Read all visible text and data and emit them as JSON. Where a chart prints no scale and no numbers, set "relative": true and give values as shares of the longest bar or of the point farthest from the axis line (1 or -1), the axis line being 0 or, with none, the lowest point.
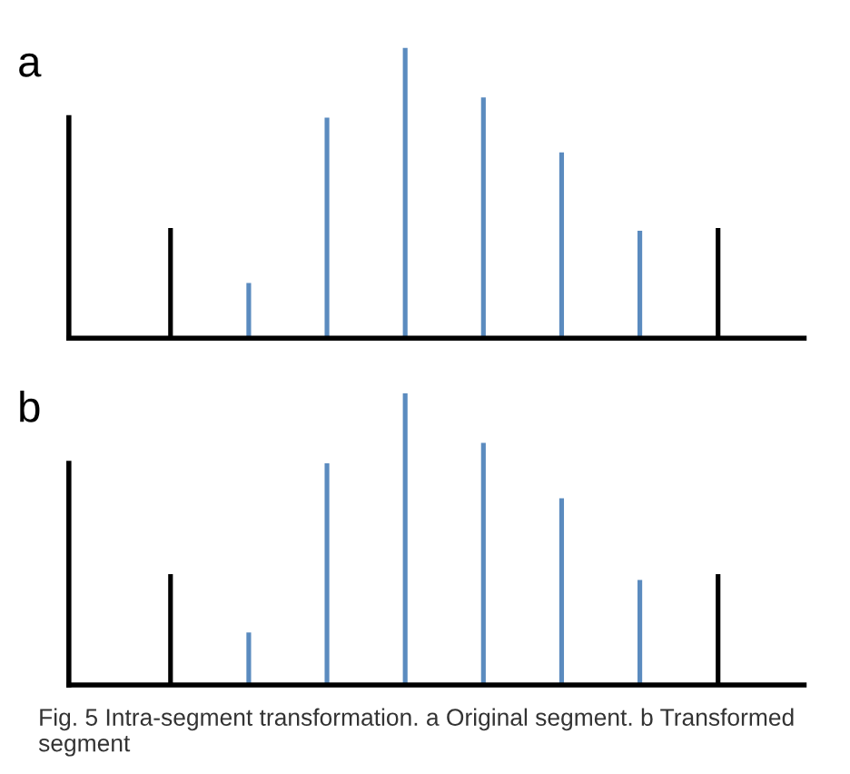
{
  "chart_data": [
    {
      "type": "bar",
      "title": "a",
      "relative": true,
      "categories": [
        null,
        null,
        null,
        null,
        null,
        null,
        null,
        null
      ],
      "values": [
        0.38,
        0.19,
        0.76,
        1.0,
        0.83,
        0.64,
        0.37,
        0.38
      ],
      "colors": [
        "#000000",
        "#5b8bbf",
        "#5b8bbf",
        "#5b8bbf",
        "#5b8bbf",
        "#5b8bbf",
        "#5b8bbf",
        "#000000"
      ]
    },
    {
      "type": "bar",
      "title": "b",
      "relative": true,
      "categories": [
        null,
        null,
        null,
        null,
        null,
        null,
        null,
        null
      ],
      "values": [
        0.38,
        0.18,
        0.76,
        1.0,
        0.83,
        0.64,
        0.36,
        0.38
      ],
      "colors": [
        "#000000",
        "#5b8bbf",
        "#5b8bbf",
        "#5b8bbf",
        "#5b8bbf",
        "#5b8bbf",
        "#5b8bbf",
        "#000000"
      ],
      "annotations": [
        "Fig. 5 Intra-segment transformation. a Original segment. b Transformed segment"
      ]
    }
  ]
}
